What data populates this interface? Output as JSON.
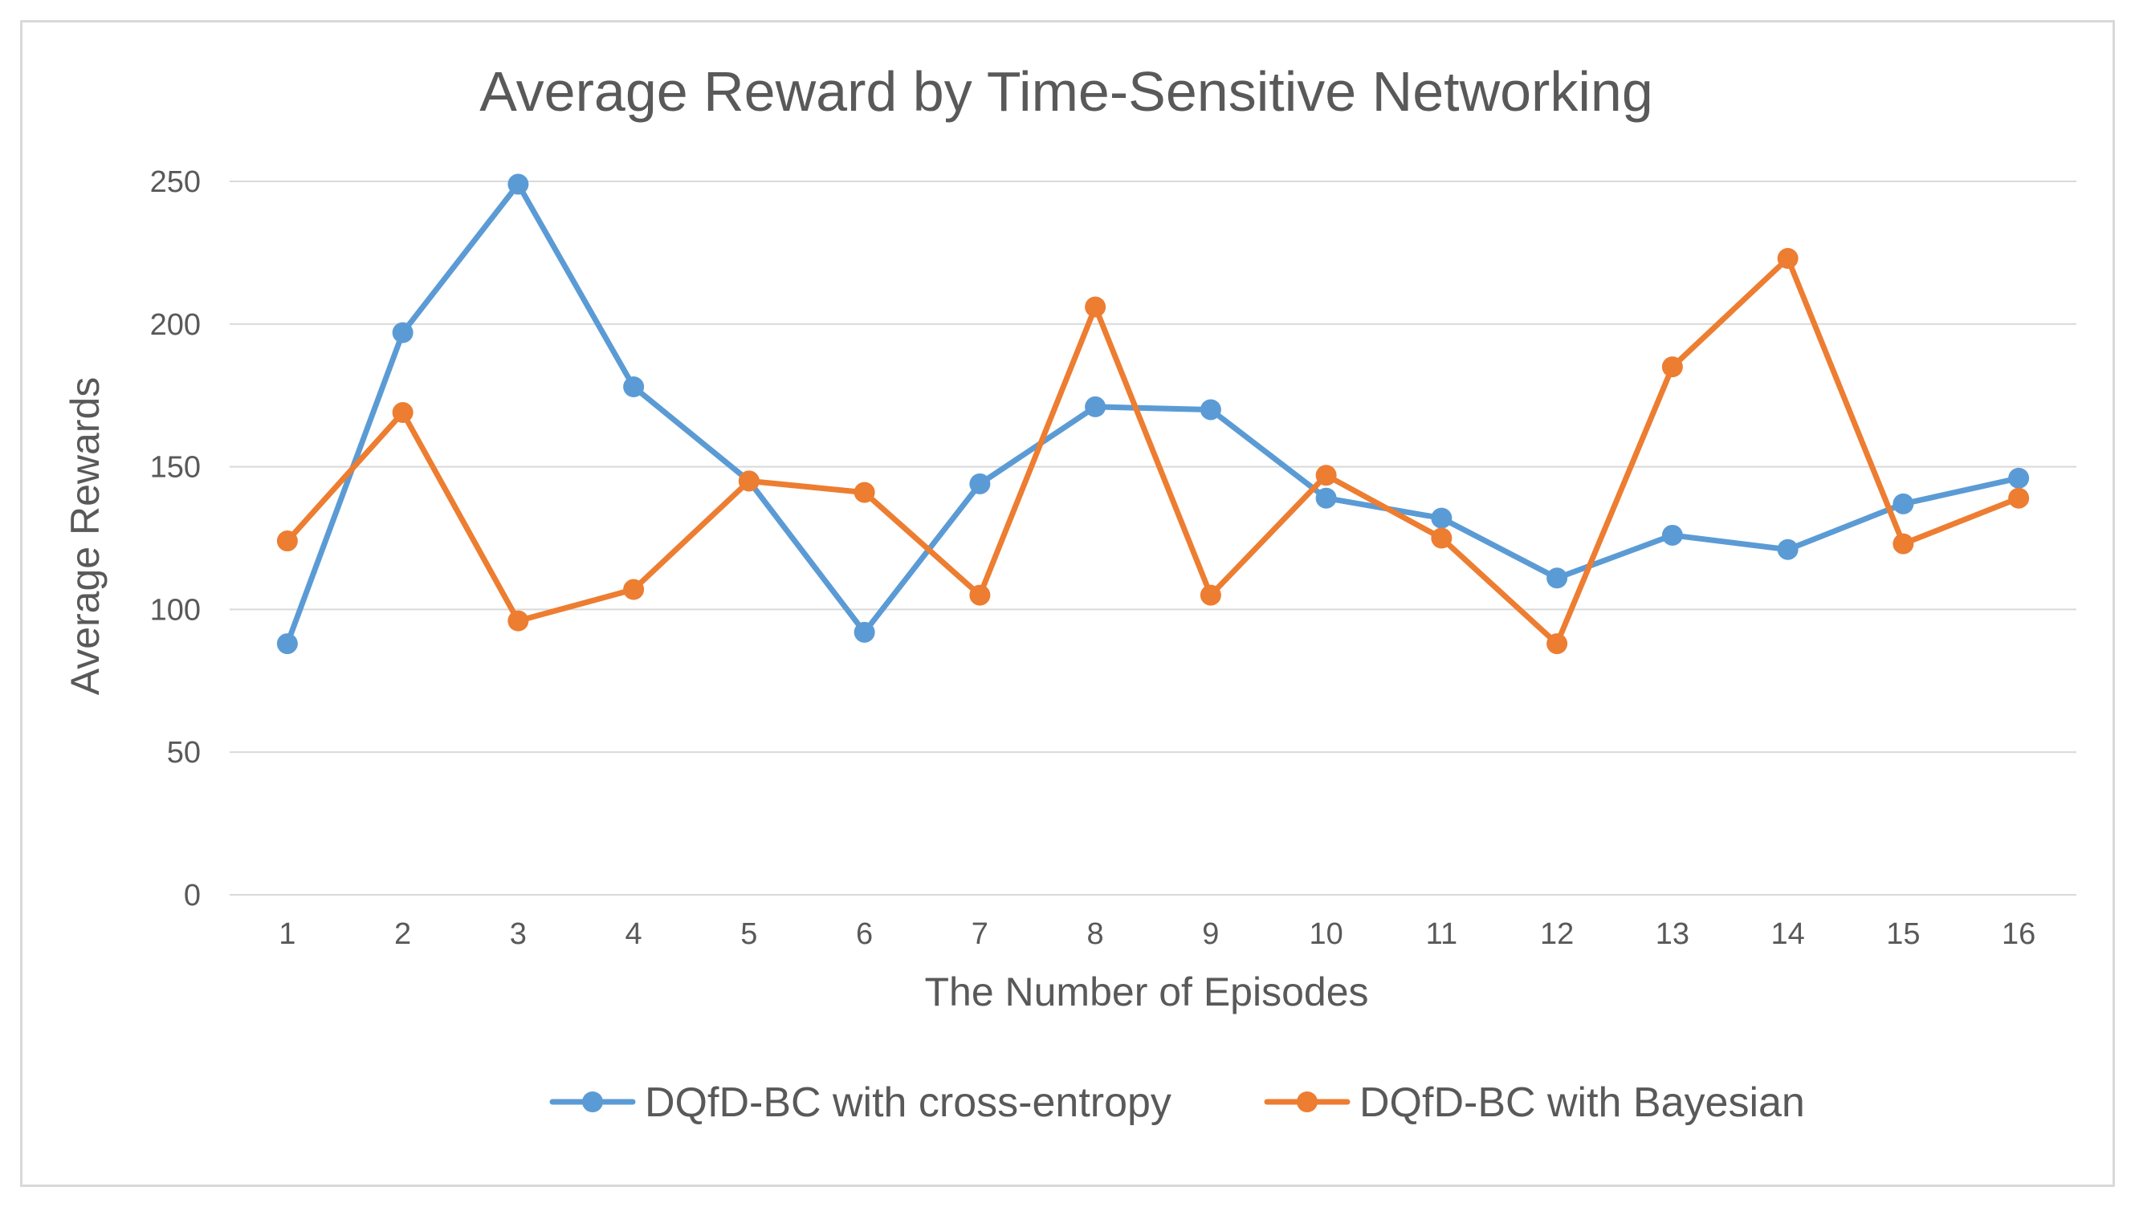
{
  "chart_data": {
    "type": "line",
    "title": "Average Reward by Time-Sensitive Networking",
    "xlabel": "The Number of Episodes",
    "ylabel": "Average Rewards",
    "categories": [
      "1",
      "2",
      "3",
      "4",
      "5",
      "6",
      "7",
      "8",
      "9",
      "10",
      "11",
      "12",
      "13",
      "14",
      "15",
      "16"
    ],
    "ylim": [
      0,
      250
    ],
    "yticks": [
      0,
      50,
      100,
      150,
      200,
      250
    ],
    "grid": true,
    "legend_position": "bottom",
    "series": [
      {
        "name": "DQfD-BC with cross-entropy",
        "color": "#5b9bd5",
        "values": [
          88,
          197,
          249,
          178,
          145,
          92,
          144,
          171,
          170,
          139,
          132,
          111,
          126,
          121,
          137,
          146
        ]
      },
      {
        "name": "DQfD-BC with Bayesian",
        "color": "#ed7d31",
        "values": [
          124,
          169,
          96,
          107,
          145,
          141,
          105,
          206,
          105,
          147,
          125,
          88,
          185,
          223,
          123,
          139
        ]
      }
    ]
  }
}
